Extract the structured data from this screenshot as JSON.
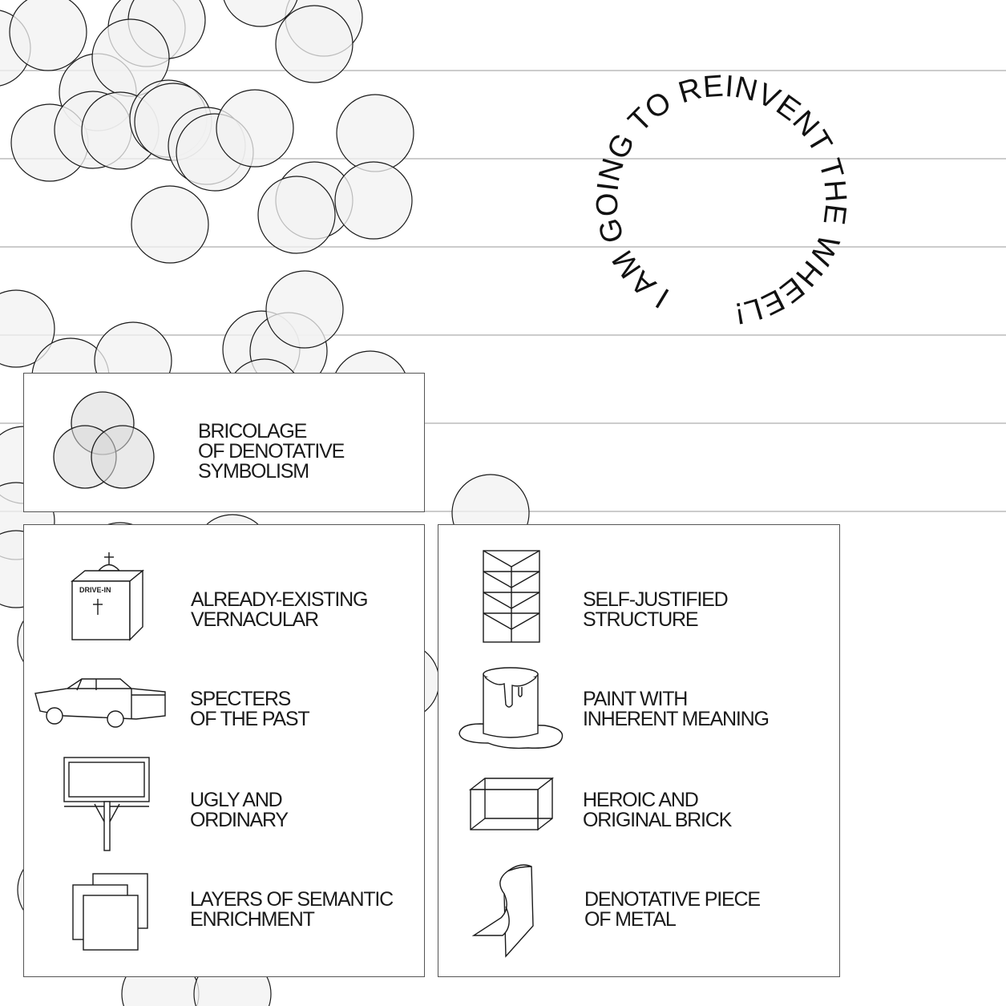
{
  "colors": {
    "stroke": "#1a1a1a",
    "circle_fill": "#f2f2f2",
    "rule_line": "#9a9a9a",
    "box_border": "#555555"
  },
  "ring_text": "I AM GOING TO REINVENT THE WHEEL!",
  "legend": {
    "top": {
      "icon": "venn-icon",
      "lines": [
        "BRICOLAGE",
        "OF DENOTATIVE",
        "SYMBOLISM"
      ]
    },
    "left": [
      {
        "icon": "chapel-icon",
        "sign": "DRIVE-IN",
        "lines": [
          "ALREADY-EXISTING",
          "VERNACULAR"
        ]
      },
      {
        "icon": "car-icon",
        "lines": [
          "SPECTERS",
          "OF THE PAST"
        ]
      },
      {
        "icon": "billboard-icon",
        "lines": [
          "UGLY AND",
          "ORDINARY"
        ]
      },
      {
        "icon": "layers-icon",
        "lines": [
          "LAYERS OF SEMANTIC",
          "ENRICHMENT"
        ]
      }
    ],
    "right": [
      {
        "icon": "truss-icon",
        "lines": [
          "SELF-JUSTIFIED",
          "STRUCTURE"
        ]
      },
      {
        "icon": "paint-can-icon",
        "lines": [
          "PAINT WITH",
          "INHERENT MEANING"
        ]
      },
      {
        "icon": "brick-icon",
        "lines": [
          "HEROIC AND",
          "ORIGINAL BRICK"
        ]
      },
      {
        "icon": "bent-metal-icon",
        "lines": [
          "DENOTATIVE PIECE",
          "OF METAL"
        ]
      }
    ]
  }
}
